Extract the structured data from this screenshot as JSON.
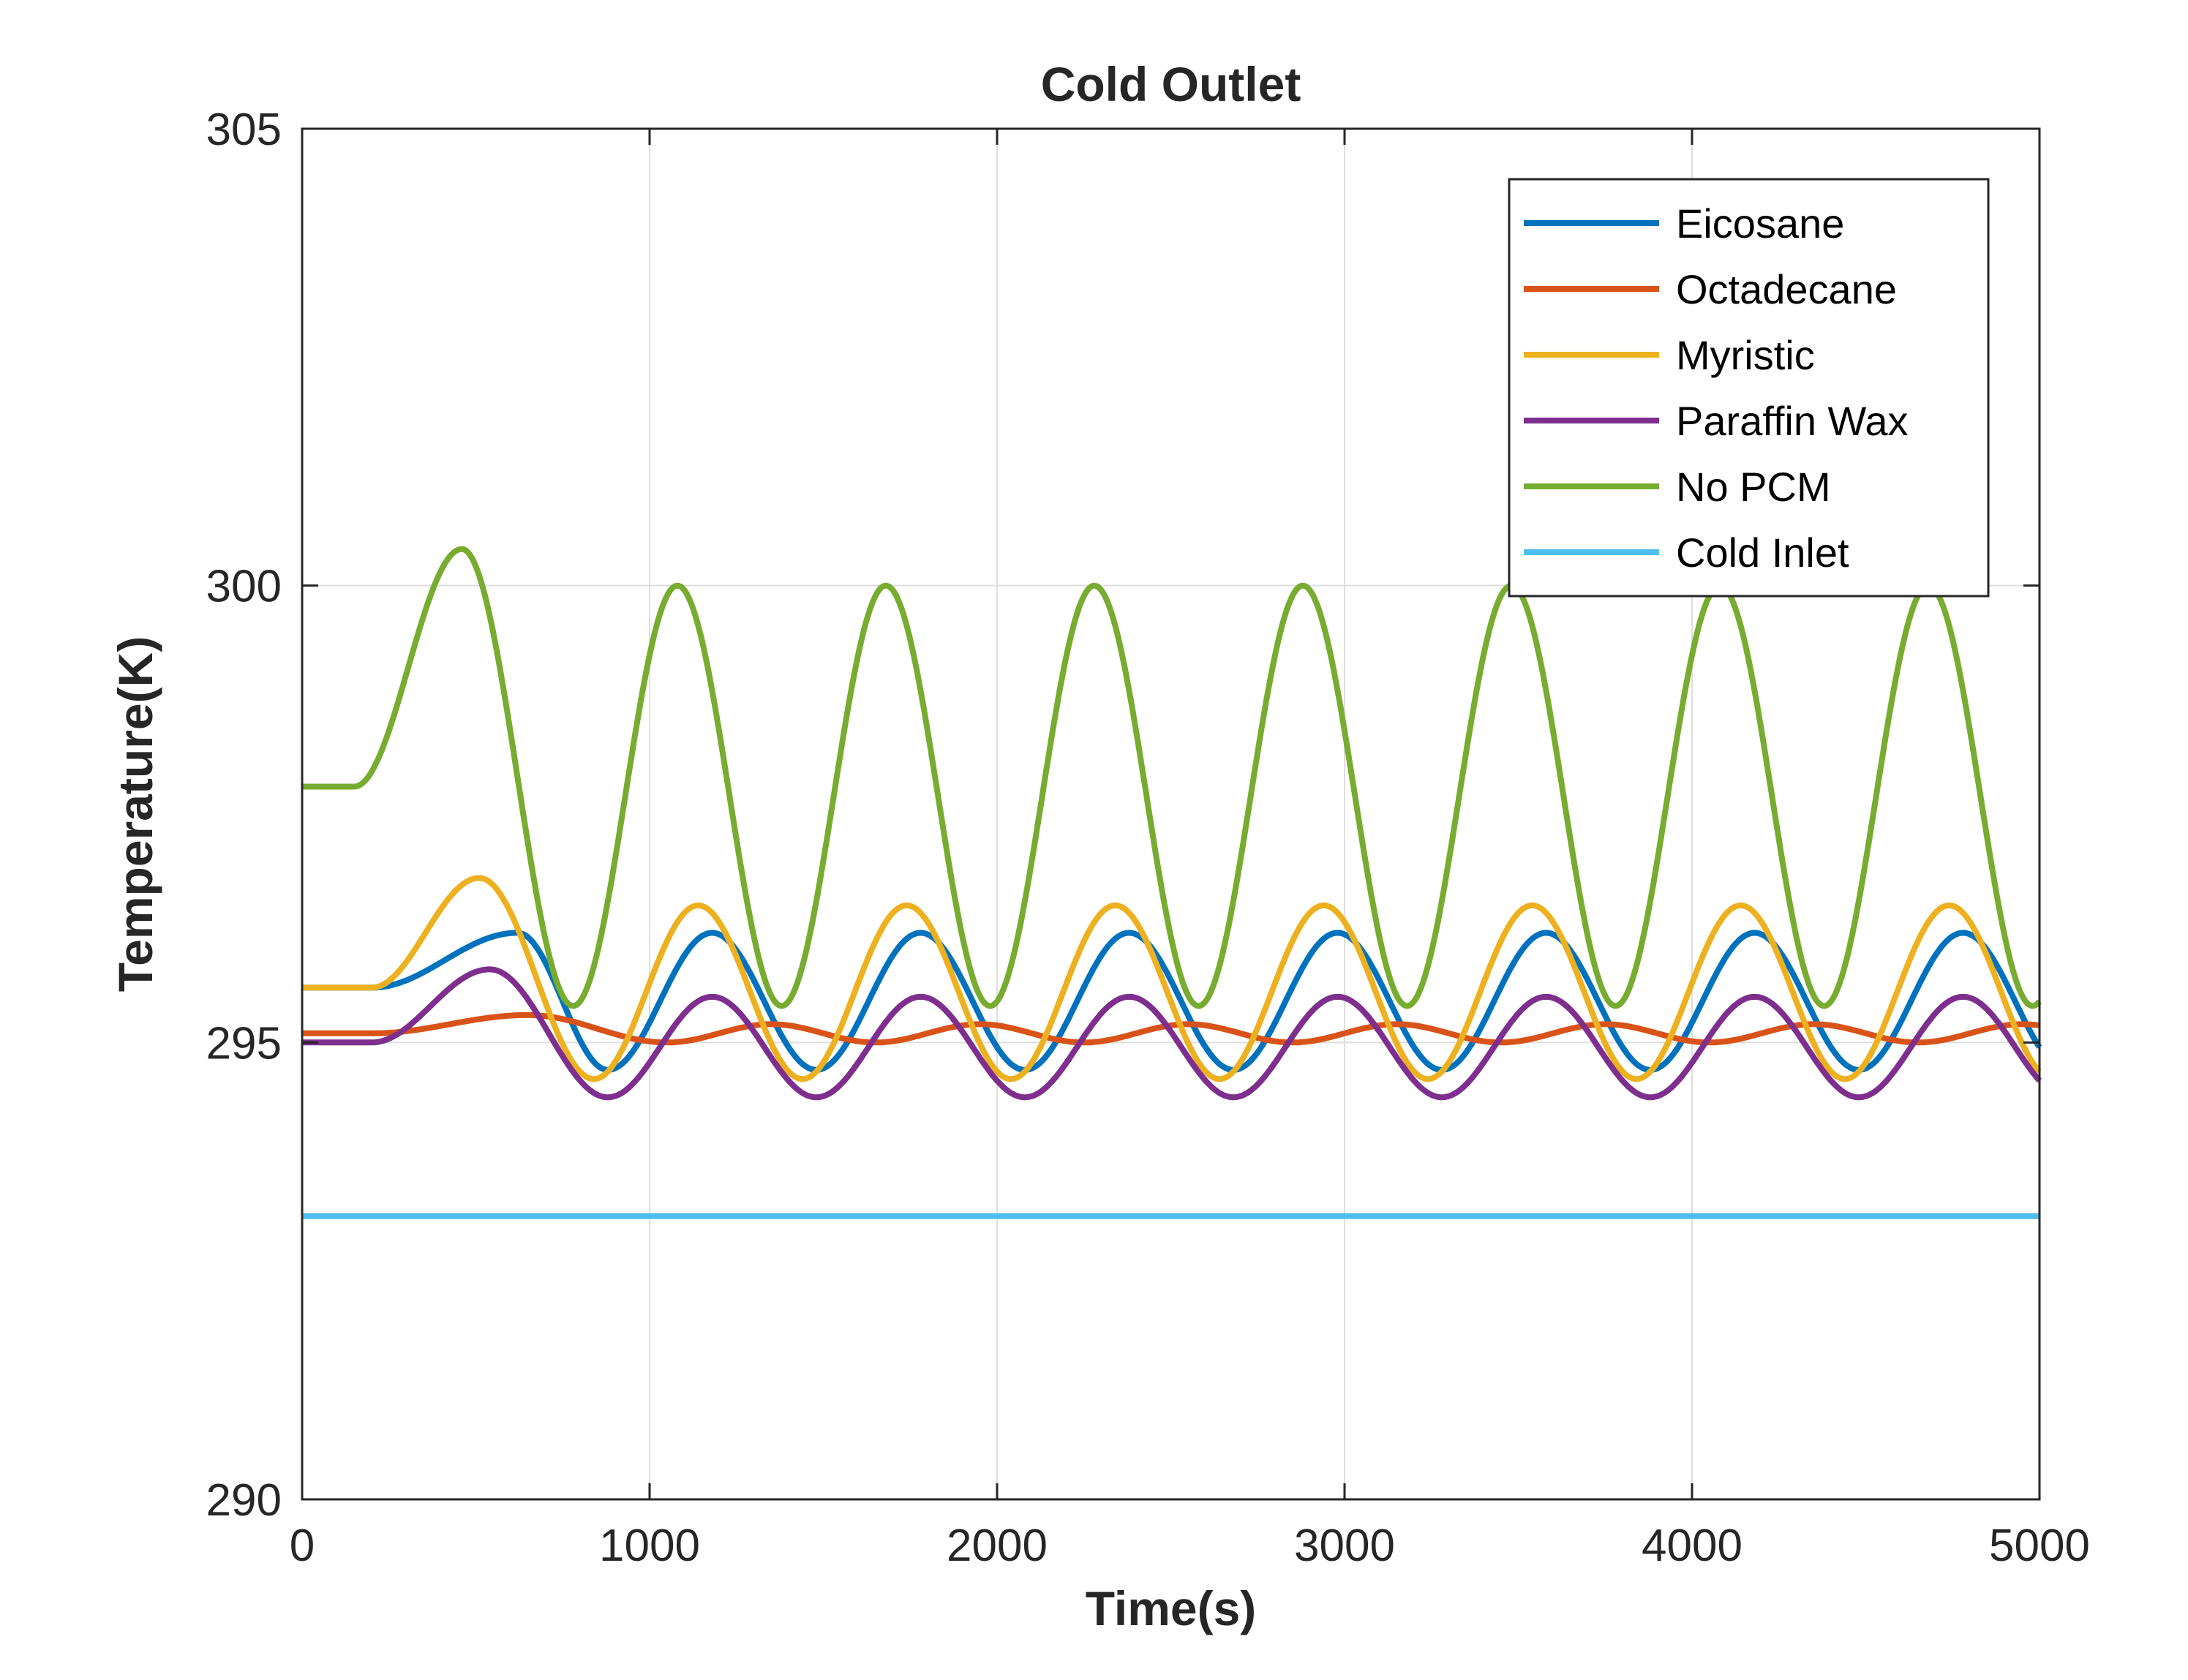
{
  "chart_data": {
    "type": "line",
    "title": "Cold Outlet",
    "xlabel": "Time(s)",
    "ylabel": "Temperature(K)",
    "xlim": [
      0,
      5000
    ],
    "ylim": [
      290,
      305
    ],
    "xticks": [
      0,
      1000,
      2000,
      3000,
      4000,
      5000
    ],
    "yticks": [
      290,
      295,
      300,
      305
    ],
    "xtick_labels": [
      "0",
      "1000",
      "2000",
      "3000",
      "4000",
      "5000"
    ],
    "ytick_labels": [
      "290",
      "295",
      "300",
      "305"
    ],
    "grid": true,
    "legend_position": "top-right",
    "series": [
      {
        "name": "Eicosane",
        "color": "#0072BD",
        "start": 295.6,
        "ramp_start": 200,
        "peak_time": 620,
        "first_peak": 296.2,
        "peak": 296.2,
        "trough": 294.7,
        "period": 600,
        "first_trough_time": 880
      },
      {
        "name": "Octadecane",
        "color": "#D95319",
        "start": 295.1,
        "ramp_start": 200,
        "peak_time": 650,
        "first_peak": 295.3,
        "peak": 295.2,
        "trough": 295.0,
        "period": 600,
        "first_trough_time": 1050
      },
      {
        "name": "Myristic",
        "color": "#EDB120",
        "start": 295.6,
        "ramp_start": 200,
        "peak_time": 510,
        "first_peak": 296.8,
        "peak": 296.5,
        "trough": 294.6,
        "period": 600,
        "first_trough_time": 840
      },
      {
        "name": "Paraffin Wax",
        "color": "#7E2F8E",
        "start": 295.0,
        "ramp_start": 200,
        "peak_time": 540,
        "first_peak": 295.8,
        "peak": 295.5,
        "trough": 294.4,
        "period": 600,
        "first_trough_time": 880
      },
      {
        "name": "No PCM",
        "color": "#77AC30",
        "start": 297.8,
        "ramp_start": 150,
        "peak_time": 460,
        "first_peak": 300.4,
        "peak": 300.0,
        "trough": 295.4,
        "period": 600,
        "first_trough_time": 780
      },
      {
        "name": "Cold Inlet",
        "color": "#4DBEEE",
        "constant": 293.1
      }
    ]
  }
}
